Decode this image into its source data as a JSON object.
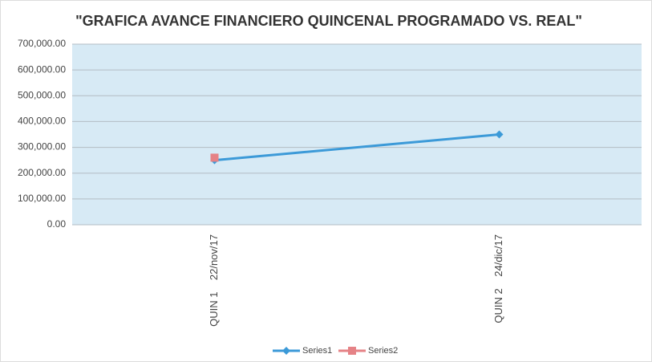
{
  "chart_data": {
    "type": "line",
    "title": "\"GRAFICA AVANCE FINANCIERO QUINCENAL PROGRAMADO VS. REAL\"",
    "categories": [
      "QUIN 1    22/nov/17",
      "QUIN 2    24/dic/17"
    ],
    "series": [
      {
        "name": "Series1",
        "color": "#3c9ad8",
        "marker": "diamond",
        "values": [
          250000,
          350000
        ]
      },
      {
        "name": "Series2",
        "color": "#e58286",
        "marker": "square",
        "values": [
          260000,
          null
        ]
      }
    ],
    "ylim": [
      0,
      700000
    ],
    "yticks": [
      {
        "value": 0,
        "label": "0.00"
      },
      {
        "value": 100000,
        "label": "100,000.00"
      },
      {
        "value": 200000,
        "label": "200,000.00"
      },
      {
        "value": 300000,
        "label": "300,000.00"
      },
      {
        "value": 400000,
        "label": "400,000.00"
      },
      {
        "value": 500000,
        "label": "500,000.00"
      },
      {
        "value": 600000,
        "label": "600,000.00"
      },
      {
        "value": 700000,
        "label": "700,000.00"
      }
    ],
    "grid": true,
    "legend": "bottom"
  }
}
